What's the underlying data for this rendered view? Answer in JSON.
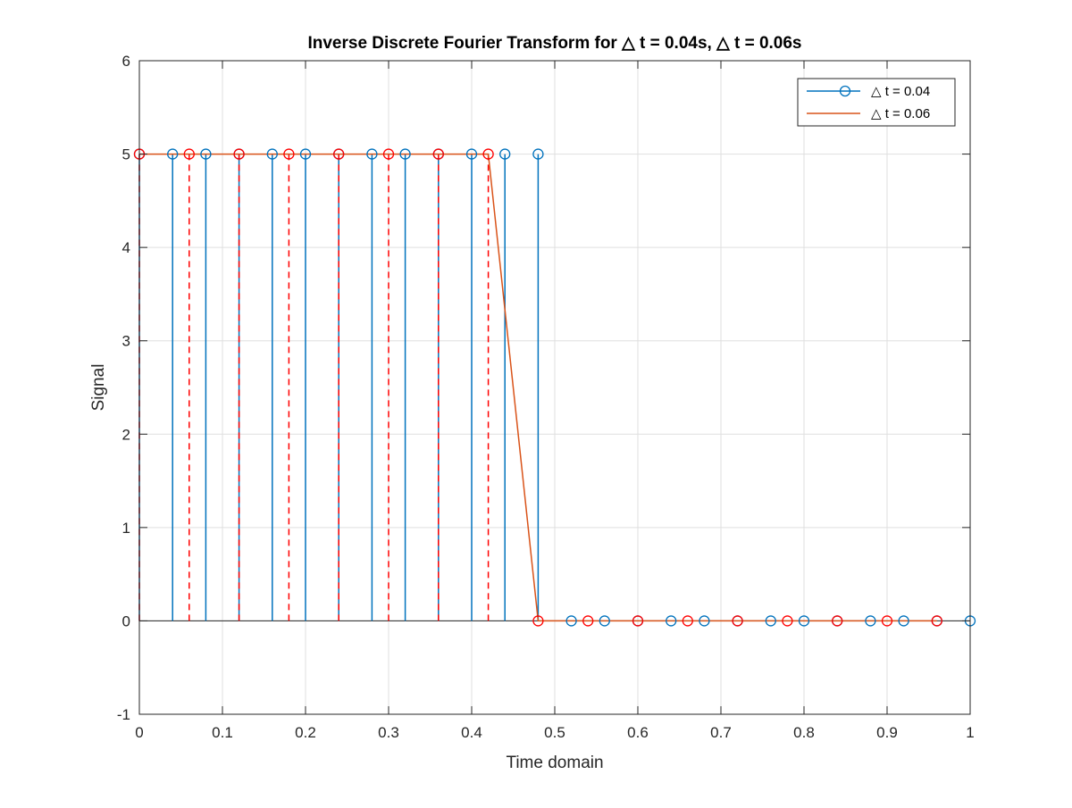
{
  "chart_data": {
    "type": "scatter",
    "title": "Inverse Discrete Fourier Transform for △ t = 0.04s, △ t = 0.06s",
    "xlabel": "Time domain",
    "ylabel": "Signal",
    "xlim": [
      0,
      1
    ],
    "ylim": [
      -1,
      6
    ],
    "xticks": [
      0,
      0.1,
      0.2,
      0.3,
      0.4,
      0.5,
      0.6,
      0.7,
      0.8,
      0.9,
      1
    ],
    "xtick_labels": [
      "0",
      "0.1",
      "0.2",
      "0.3",
      "0.4",
      "0.5",
      "0.6",
      "0.7",
      "0.8",
      "0.9",
      "1"
    ],
    "yticks": [
      -1,
      0,
      1,
      2,
      3,
      4,
      5,
      6
    ],
    "ytick_labels": [
      "-1",
      "0",
      "1",
      "2",
      "3",
      "4",
      "5",
      "6"
    ],
    "grid": true,
    "legend_position": "top-right",
    "series": [
      {
        "name": "△ t = 0.04",
        "style": "stem-solid",
        "marker": "circle",
        "color": "#0072BD",
        "x": [
          0,
          0.04,
          0.08,
          0.12,
          0.16,
          0.2,
          0.24,
          0.28,
          0.32,
          0.36,
          0.4,
          0.44,
          0.48,
          0.52,
          0.56,
          0.6,
          0.64,
          0.68,
          0.72,
          0.76,
          0.8,
          0.84,
          0.88,
          0.92,
          0.96,
          1
        ],
        "y": [
          5,
          5,
          5,
          5,
          5,
          5,
          5,
          5,
          5,
          5,
          5,
          5,
          5,
          0,
          0,
          0,
          0,
          0,
          0,
          0,
          0,
          0,
          0,
          0,
          0,
          0
        ]
      },
      {
        "name": "△ t = 0.06",
        "style": "line",
        "color": "#D95319",
        "x": [
          0,
          0.06,
          0.12,
          0.18,
          0.24,
          0.3,
          0.36,
          0.42,
          0.48,
          0.54,
          0.6,
          0.66,
          0.72,
          0.78,
          0.84,
          0.9,
          0.96
        ],
        "y": [
          5,
          5,
          5,
          5,
          5,
          5,
          5,
          5,
          0,
          0,
          0,
          0,
          0,
          0,
          0,
          0,
          0
        ]
      },
      {
        "style": "stem-dashed",
        "marker": "circle",
        "color": "#FF0000",
        "x": [
          0,
          0.06,
          0.12,
          0.18,
          0.24,
          0.3,
          0.36,
          0.42,
          0.48,
          0.54,
          0.6,
          0.66,
          0.72,
          0.78,
          0.84,
          0.9,
          0.96
        ],
        "y": [
          5,
          5,
          5,
          5,
          5,
          5,
          5,
          5,
          0,
          0,
          0,
          0,
          0,
          0,
          0,
          0,
          0
        ]
      }
    ]
  }
}
